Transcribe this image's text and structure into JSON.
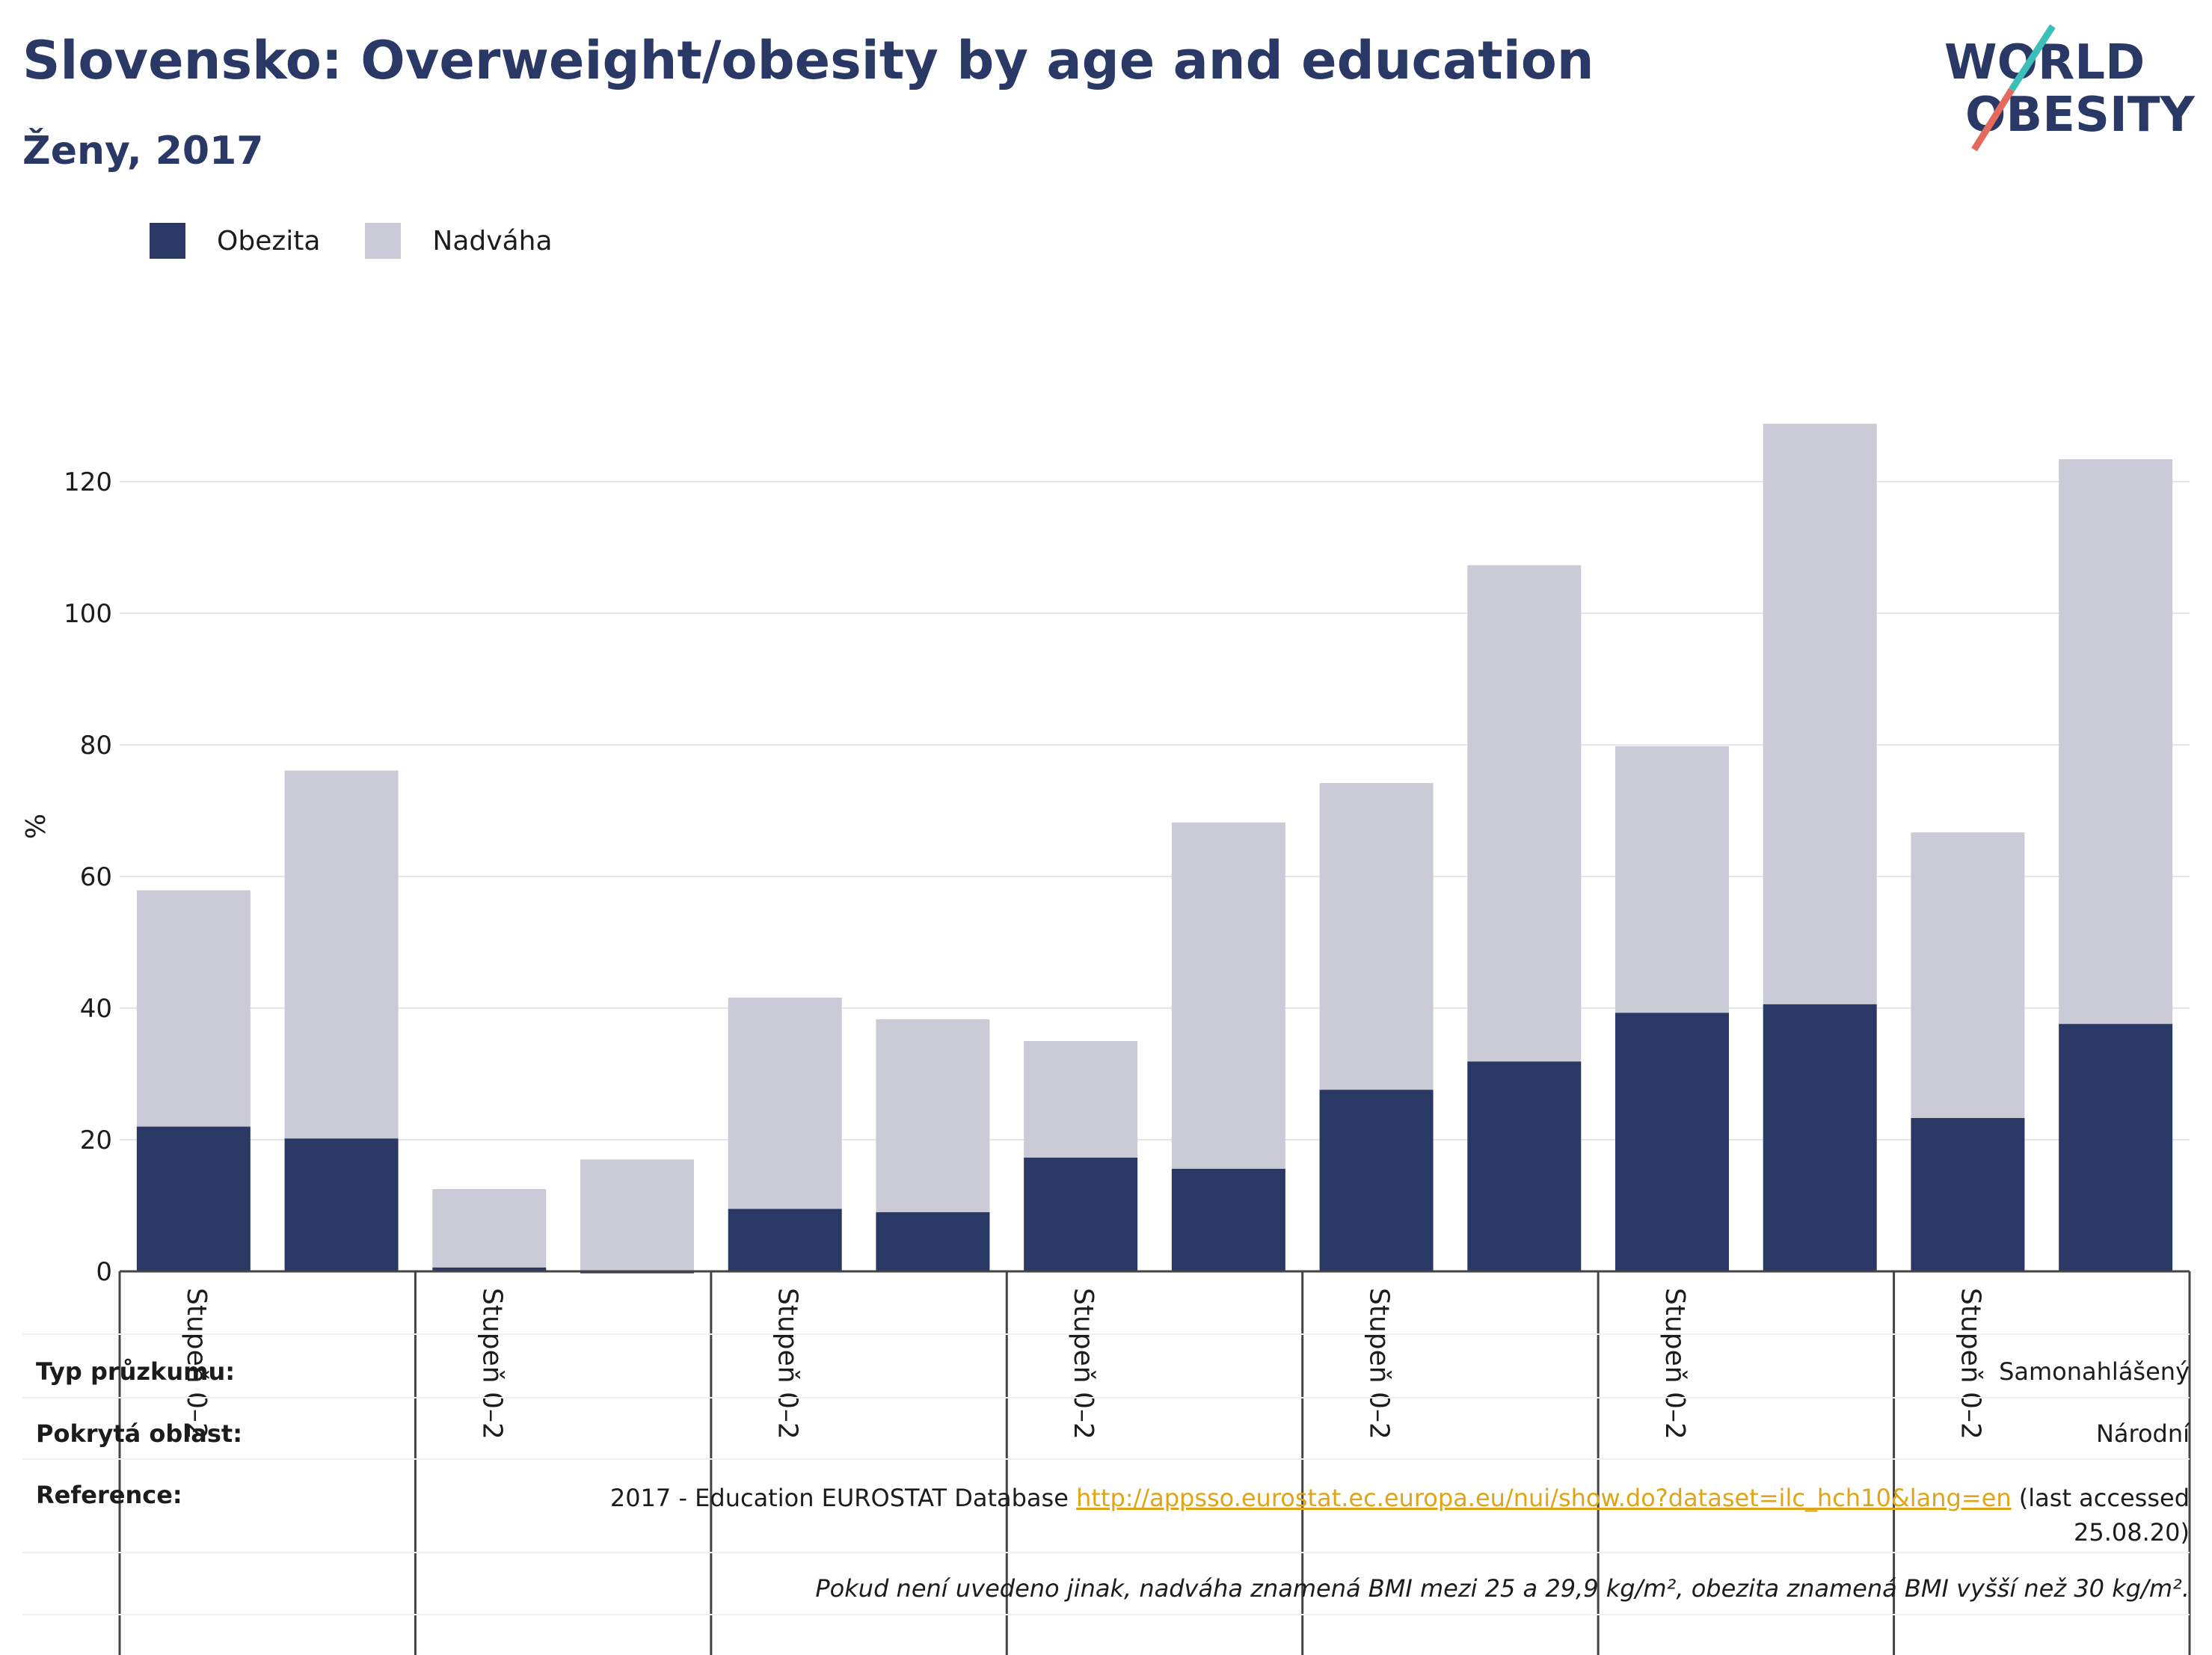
{
  "title": "Slovensko: Overweight/obesity by age and education",
  "subtitle": "Ženy, 2017",
  "logo": {
    "line1": "WORLD",
    "line2": "OBESITY"
  },
  "colors": {
    "obezita": "#2a3866",
    "nadvaha": "#cacbd7",
    "accent_teal": "#3bbfb7",
    "accent_coral": "#e46a5e",
    "link": "#e0a419"
  },
  "legend": [
    {
      "label": "Obezita",
      "color": "#2a3866"
    },
    {
      "label": "Nadváha",
      "color": "#cacbd7"
    }
  ],
  "chart_data": {
    "type": "bar",
    "stacked": true,
    "ylabel": "%",
    "ylim": [
      0,
      130
    ],
    "yticks": [
      0,
      20,
      40,
      60,
      80,
      100,
      120
    ],
    "grid": true,
    "legend_position": "top-left",
    "group_labels": [
      "Stupeň 0–2",
      "Stupeň 0–2",
      "Stupeň 0–2",
      "Stupeň 0–2",
      "Stupeň 0–2",
      "Stupeň 0–2",
      "Stupeň 0–2"
    ],
    "bars_per_group": 2,
    "series": [
      {
        "name": "Obezita",
        "values": [
          22.0,
          20.2,
          0.6,
          -0.3,
          9.5,
          9.0,
          17.3,
          15.6,
          27.6,
          31.9,
          39.3,
          40.6,
          23.3,
          37.6
        ]
      },
      {
        "name": "Nadváha",
        "values": [
          35.9,
          55.9,
          11.9,
          17.0,
          32.1,
          29.3,
          17.7,
          52.6,
          46.6,
          75.4,
          40.5,
          88.2,
          43.4,
          85.8
        ]
      }
    ]
  },
  "info": {
    "survey_type_label": "Typ průzkumu:",
    "survey_type_value": "Samonahlášený",
    "area_label": "Pokrytá oblast:",
    "area_value": "Národní",
    "reference_label": "Reference:",
    "reference_prefix": "2017 - Education EUROSTAT Database ",
    "reference_link": "http://appsso.eurostat.ec.europa.eu/nui/show.do?dataset=ilc_hch10&lang=en",
    "reference_suffix_1": " (last accessed",
    "reference_suffix_2": "25.08.20)",
    "note": "Pokud není uvedeno jinak, nadváha znamená BMI mezi 25 a 29,9 kg/m², obezita znamená BMI vyšší než 30 kg/m²."
  }
}
